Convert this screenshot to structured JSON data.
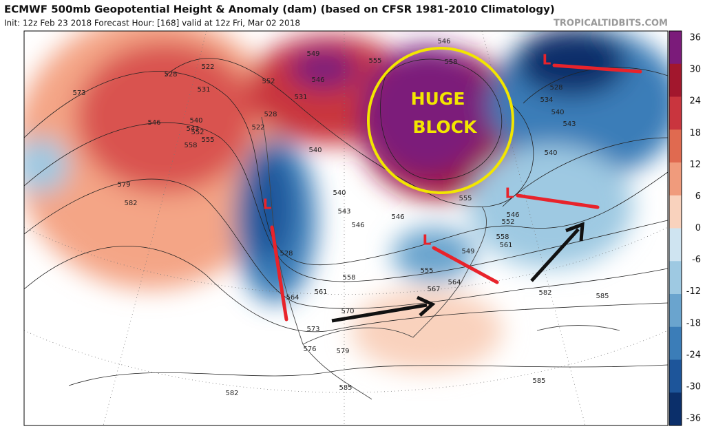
{
  "header": {
    "title": "ECMWF 500mb Geopotential Height & Anomaly (dam) (based on CFSR 1981-2010 Climatology)",
    "subtitle": "Init: 12z Feb 23 2018   Forecast Hour: [168]   valid at 12z Fri, Mar 02 2018",
    "credit": "TROPICALTIDBITS.COM"
  },
  "annotation": {
    "line1": "HUGE",
    "line2": "BLOCK",
    "lows": [
      "L",
      "L",
      "L",
      "L"
    ]
  },
  "colorbar": {
    "ticks": [
      36,
      30,
      24,
      18,
      12,
      6,
      0,
      -6,
      -12,
      -18,
      -24,
      -30,
      -36
    ],
    "colors": [
      "#7b1b7a",
      "#a2172d",
      "#c9353e",
      "#e06a50",
      "#f09b7c",
      "#f9d2bd",
      "#cfe4f1",
      "#9ec9e2",
      "#6aa4ce",
      "#3b7db8",
      "#1d559a",
      "#0b2f6a"
    ]
  },
  "contour_labels": [
    573,
    528,
    522,
    531,
    540,
    543,
    546,
    552,
    555,
    558,
    579,
    582,
    528,
    522,
    549,
    552,
    546,
    531,
    540,
    540,
    543,
    546,
    546,
    528,
    564,
    561,
    558,
    555,
    564,
    567,
    570,
    573,
    576,
    579,
    582,
    585,
    585,
    582,
    585,
    561,
    558,
    552,
    546,
    540,
    543,
    540,
    534,
    528,
    555,
    558,
    546,
    555,
    549
  ]
}
